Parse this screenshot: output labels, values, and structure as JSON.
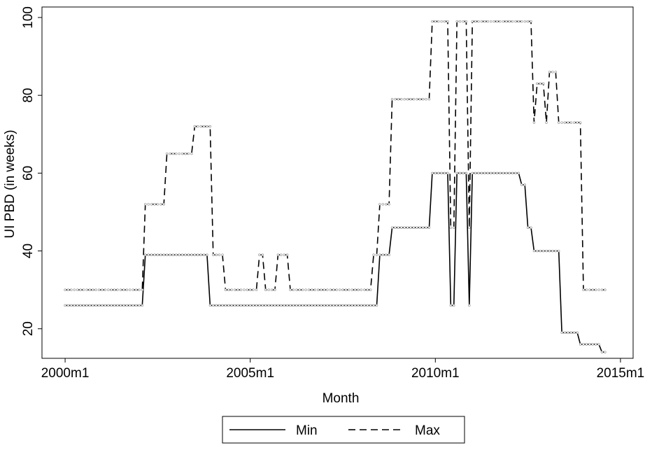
{
  "chart_data": {
    "type": "line",
    "x_label": "Month",
    "y_label": "UI PBD (in weeks)",
    "x": [
      480,
      481,
      482,
      483,
      484,
      485,
      486,
      487,
      488,
      489,
      490,
      491,
      492,
      493,
      494,
      495,
      496,
      497,
      498,
      499,
      500,
      501,
      502,
      503,
      504,
      505,
      506,
      507,
      508,
      509,
      510,
      511,
      512,
      513,
      514,
      515,
      516,
      517,
      518,
      519,
      520,
      521,
      522,
      523,
      524,
      525,
      526,
      527,
      528,
      529,
      530,
      531,
      532,
      533,
      534,
      535,
      536,
      537,
      538,
      539,
      540,
      541,
      542,
      543,
      544,
      545,
      546,
      547,
      548,
      549,
      550,
      551,
      552,
      553,
      554,
      555,
      556,
      557,
      558,
      559,
      560,
      561,
      562,
      563,
      564,
      565,
      566,
      567,
      568,
      569,
      570,
      571,
      572,
      573,
      574,
      575,
      576,
      577,
      578,
      579,
      580,
      581,
      582,
      583,
      584,
      585,
      586,
      587,
      588,
      589,
      590,
      591,
      592,
      593,
      594,
      595,
      596,
      597,
      598,
      599,
      600,
      601,
      602,
      603,
      604,
      605,
      606,
      607,
      608,
      609,
      610,
      611,
      612,
      613,
      614,
      615,
      616,
      617,
      618,
      619,
      620,
      621,
      622,
      623,
      624,
      625,
      626,
      627,
      628,
      629,
      630,
      631,
      632,
      633,
      634,
      635,
      636,
      637,
      638,
      639,
      640,
      641,
      642,
      643,
      644,
      645,
      646,
      647,
      648,
      649,
      650,
      651,
      652,
      653,
      654,
      655
    ],
    "series": [
      {
        "name": "Min",
        "color": "#000000",
        "style": "solid",
        "values": [
          26,
          26,
          26,
          26,
          26,
          26,
          26,
          26,
          26,
          26,
          26,
          26,
          26,
          26,
          26,
          26,
          26,
          26,
          26,
          26,
          26,
          26,
          26,
          26,
          26,
          26,
          39,
          39,
          39,
          39,
          39,
          39,
          39,
          39,
          39,
          39,
          39,
          39,
          39,
          39,
          39,
          39,
          39,
          39,
          39,
          39,
          39,
          26,
          26,
          26,
          26,
          26,
          26,
          26,
          26,
          26,
          26,
          26,
          26,
          26,
          26,
          26,
          26,
          26,
          26,
          26,
          26,
          26,
          26,
          26,
          26,
          26,
          26,
          26,
          26,
          26,
          26,
          26,
          26,
          26,
          26,
          26,
          26,
          26,
          26,
          26,
          26,
          26,
          26,
          26,
          26,
          26,
          26,
          26,
          26,
          26,
          26,
          26,
          26,
          26,
          26,
          26,
          39,
          39,
          39,
          39,
          46,
          46,
          46,
          46,
          46,
          46,
          46,
          46,
          46,
          46,
          46,
          46,
          46,
          60,
          60,
          60,
          60,
          60,
          60,
          26,
          26,
          60,
          60,
          60,
          60,
          26,
          60,
          60,
          60,
          60,
          60,
          60,
          60,
          60,
          60,
          60,
          60,
          60,
          60,
          60,
          60,
          60,
          57,
          57,
          46,
          46,
          40,
          40,
          40,
          40,
          40,
          40,
          40,
          40,
          40,
          19,
          19,
          19,
          19,
          19,
          19,
          16,
          16,
          16,
          16,
          16,
          16,
          16,
          14,
          14
        ]
      },
      {
        "name": "Max",
        "color": "#000000",
        "style": "dashed",
        "values": [
          30,
          30,
          30,
          30,
          30,
          30,
          30,
          30,
          30,
          30,
          30,
          30,
          30,
          30,
          30,
          30,
          30,
          30,
          30,
          30,
          30,
          30,
          30,
          30,
          30,
          30,
          52,
          52,
          52,
          52,
          52,
          52,
          52,
          65,
          65,
          65,
          65,
          65,
          65,
          65,
          65,
          65,
          72,
          72,
          72,
          72,
          72,
          72,
          39,
          39,
          39,
          39,
          30,
          30,
          30,
          30,
          30,
          30,
          30,
          30,
          30,
          30,
          30,
          39,
          39,
          30,
          30,
          30,
          30,
          39,
          39,
          39,
          39,
          30,
          30,
          30,
          30,
          30,
          30,
          30,
          30,
          30,
          30,
          30,
          30,
          30,
          30,
          30,
          30,
          30,
          30,
          30,
          30,
          30,
          30,
          30,
          30,
          30,
          30,
          30,
          39,
          39,
          52,
          52,
          52,
          52,
          79,
          79,
          79,
          79,
          79,
          79,
          79,
          79,
          79,
          79,
          79,
          79,
          79,
          99,
          99,
          99,
          99,
          99,
          99,
          46,
          46,
          99,
          99,
          99,
          99,
          46,
          99,
          99,
          99,
          99,
          99,
          99,
          99,
          99,
          99,
          99,
          99,
          99,
          99,
          99,
          99,
          99,
          99,
          99,
          99,
          99,
          73,
          83,
          83,
          83,
          73,
          86,
          86,
          86,
          73,
          73,
          73,
          73,
          73,
          73,
          73,
          73,
          30,
          30,
          30,
          30,
          30,
          30,
          30,
          30
        ]
      }
    ],
    "xlim": [
      472.5,
      664.1
    ],
    "xticks": [
      {
        "value": 480,
        "label": "2000m1"
      },
      {
        "value": 540,
        "label": "2005m1"
      },
      {
        "value": 600,
        "label": "2010m1"
      },
      {
        "value": 660,
        "label": "2015m1"
      }
    ],
    "ylim": [
      12.4,
      102.7
    ],
    "yticks": [
      20,
      40,
      60,
      80,
      100
    ],
    "grid": false,
    "legend": "bottom"
  }
}
